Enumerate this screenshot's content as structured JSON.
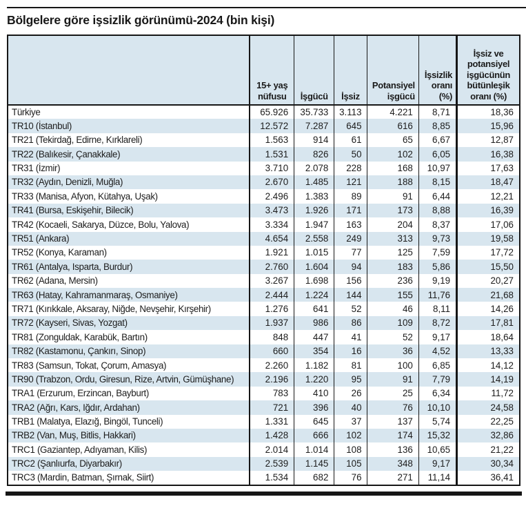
{
  "title": "Bölgelere göre işsizlik görünümü-2024 (bin kişi)",
  "colors": {
    "table_blue": "#d8e6ef",
    "rule_black": "#161616"
  },
  "chart_data": {
    "type": "table",
    "title": "Bölgelere göre işsizlik görünümü-2024 (bin kişi)",
    "unit": "bin kişi",
    "headers": [
      "",
      "15+ yaş nüfusu",
      "İşgücü",
      "İşsiz",
      "Potansiyel işgücü",
      "İşsizlik oranı (%)",
      "İşsiz ve potansiyel işgücünün bütünleşik oranı (%)"
    ],
    "rows": [
      [
        "Türkiye",
        "65.926",
        "35.733",
        "3.113",
        "4.221",
        "8,71",
        "18,36"
      ],
      [
        "TR10 (İstanbul)",
        "12.572",
        "7.287",
        "645",
        "616",
        "8,85",
        "15,96"
      ],
      [
        "TR21 (Tekirdağ, Edirne, Kırklareli)",
        "1.563",
        "914",
        "61",
        "65",
        "6,67",
        "12,87"
      ],
      [
        "TR22 (Balıkesir, Çanakkale)",
        "1.531",
        "826",
        "50",
        "102",
        "6,05",
        "16,38"
      ],
      [
        "TR31 (İzmir)",
        "3.710",
        "2.078",
        "228",
        "168",
        "10,97",
        "17,63"
      ],
      [
        "TR32 (Aydın, Denizli, Muğla)",
        "2.670",
        "1.485",
        "121",
        "188",
        "8,15",
        "18,47"
      ],
      [
        "TR33 (Manisa, Afyon, Kütahya, Uşak)",
        "2.496",
        "1.383",
        "89",
        "91",
        "6,44",
        "12,21"
      ],
      [
        "TR41 (Bursa, Eskişehir, Bilecik)",
        "3.473",
        "1.926",
        "171",
        "173",
        "8,88",
        "16,39"
      ],
      [
        "TR42 (Kocaeli, Sakarya, Düzce, Bolu, Yalova)",
        "3.334",
        "1.947",
        "163",
        "204",
        "8,37",
        "17,06"
      ],
      [
        "TR51 (Ankara)",
        "4.654",
        "2.558",
        "249",
        "313",
        "9,73",
        "19,58"
      ],
      [
        "TR52 (Konya, Karaman)",
        "1.921",
        "1.015",
        "77",
        "125",
        "7,59",
        "17,72"
      ],
      [
        "TR61 (Antalya, Isparta, Burdur)",
        "2.760",
        "1.604",
        "94",
        "183",
        "5,86",
        "15,50"
      ],
      [
        "TR62 (Adana, Mersin)",
        "3.267",
        "1.698",
        "156",
        "236",
        "9,19",
        "20,27"
      ],
      [
        "TR63 (Hatay, Kahramanmaraş, Osmaniye)",
        "2.444",
        "1.224",
        "144",
        "155",
        "11,76",
        "21,68"
      ],
      [
        "TR71 (Kırıkkale, Aksaray, Niğde, Nevşehir, Kırşehir)",
        "1.276",
        "641",
        "52",
        "46",
        "8,11",
        "14,26"
      ],
      [
        "TR72 (Kayseri, Sivas, Yozgat)",
        "1.937",
        "986",
        "86",
        "109",
        "8,72",
        "17,81"
      ],
      [
        "TR81 (Zonguldak, Karabük, Bartın)",
        "848",
        "447",
        "41",
        "52",
        "9,17",
        "18,64"
      ],
      [
        "TR82 (Kastamonu, Çankırı, Sinop)",
        "660",
        "354",
        "16",
        "36",
        "4,52",
        "13,33"
      ],
      [
        "TR83 (Samsun, Tokat, Çorum, Amasya)",
        "2.260",
        "1.182",
        "81",
        "100",
        "6,85",
        "14,12"
      ],
      [
        "TR90 (Trabzon, Ordu, Giresun, Rize, Artvin, Gümüşhane)",
        "2.196",
        "1.220",
        "95",
        "91",
        "7,79",
        "14,19"
      ],
      [
        "TRA1 (Erzurum, Erzincan, Bayburt)",
        "783",
        "410",
        "26",
        "25",
        "6,34",
        "11,72"
      ],
      [
        "TRA2 (Ağrı, Kars, Iğdır, Ardahan)",
        "721",
        "396",
        "40",
        "76",
        "10,10",
        "24,58"
      ],
      [
        "TRB1 (Malatya, Elazığ, Bingöl, Tunceli)",
        "1.331",
        "645",
        "37",
        "137",
        "5,74",
        "22,25"
      ],
      [
        "TRB2 (Van, Muş, Bitlis, Hakkari)",
        "1.428",
        "666",
        "102",
        "174",
        "15,32",
        "32,86"
      ],
      [
        "TRC1 (Gaziantep, Adıyaman, Kilis)",
        "2.014",
        "1.014",
        "108",
        "136",
        "10,65",
        "21,22"
      ],
      [
        "TRC2 (Şanlıurfa, Diyarbakır)",
        "2.539",
        "1.145",
        "105",
        "348",
        "9,17",
        "30,34"
      ],
      [
        "TRC3 (Mardin, Batman, Şırnak, Siirt)",
        "1.534",
        "682",
        "76",
        "271",
        "11,14",
        "36,41"
      ]
    ]
  }
}
